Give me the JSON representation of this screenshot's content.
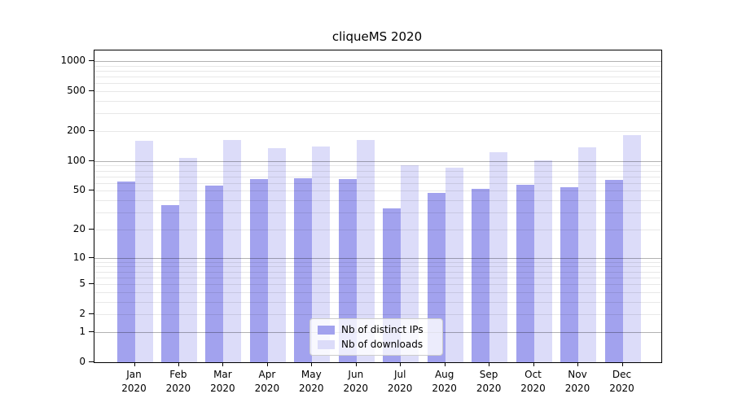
{
  "title": "cliqueMS 2020",
  "chart_data": {
    "type": "bar",
    "title": "cliqueMS 2020",
    "categories": [
      "Jan 2020",
      "Feb 2020",
      "Mar 2020",
      "Apr 2020",
      "May 2020",
      "Jun 2020",
      "Jul 2020",
      "Aug 2020",
      "Sep 2020",
      "Oct 2020",
      "Nov 2020",
      "Dec 2020"
    ],
    "series": [
      {
        "name": "Nb of distinct IPs",
        "color": "#a2a2ee",
        "values": [
          62,
          36,
          57,
          66,
          67,
          66,
          33,
          48,
          52,
          58,
          54,
          64
        ]
      },
      {
        "name": "Nb of downloads",
        "color": "#dcdcf9",
        "values": [
          160,
          107,
          162,
          135,
          140,
          163,
          90,
          86,
          123,
          102,
          137,
          182
        ]
      }
    ],
    "xlabel": "",
    "ylabel": "",
    "y_scale": "log10(value+1)",
    "y_ticks": [
      0,
      1,
      2,
      5,
      10,
      20,
      50,
      100,
      200,
      500,
      1000
    ],
    "ylim": [
      0,
      1000
    ],
    "grid": "horizontal; darker lines at decades (1,10,100,1000), faint minors at 2-9 per decade, drawn over bars",
    "legend_position": "bottom-center-inside"
  },
  "legend": {
    "items": [
      {
        "label": "Nb of distinct IPs",
        "color": "#a2a2ee"
      },
      {
        "label": "Nb of downloads",
        "color": "#dcdcf9"
      }
    ]
  },
  "colors": {
    "bar_distinct_ips": "#a2a2ee",
    "bar_downloads": "#dcdcf9",
    "major_grid": "rgba(0,0,0,0.30)",
    "minor_grid": "rgba(0,0,0,0.09)",
    "axis": "#000000",
    "background": "#ffffff",
    "legend_border": "#cccccc"
  }
}
